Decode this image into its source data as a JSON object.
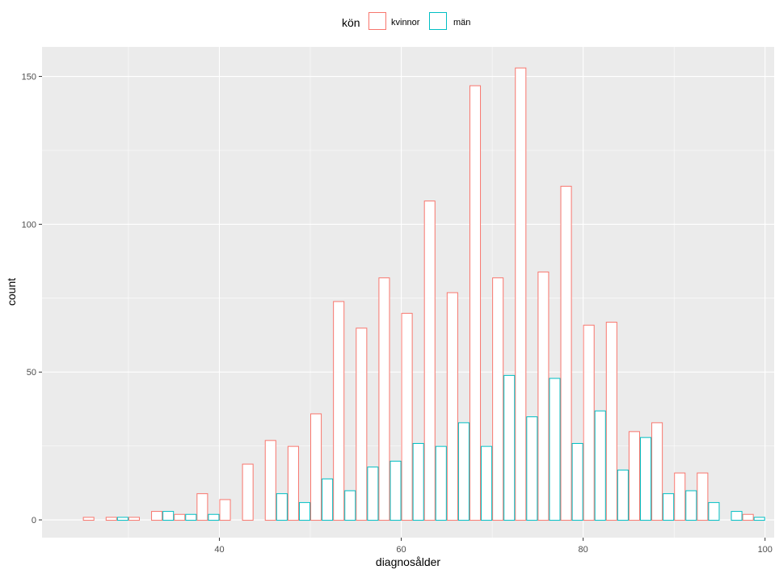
{
  "chart_data": {
    "type": "bar",
    "xlabel": "diagnosålder",
    "ylabel": "count",
    "xlim": [
      20.5,
      101
    ],
    "ylim": [
      -6,
      160
    ],
    "x_ticks": [
      40,
      60,
      80,
      100
    ],
    "y_ticks": [
      0,
      50,
      100,
      150
    ],
    "bin_width": 2.5,
    "grid": true,
    "legend_position": "top",
    "legend_title": "kön",
    "bin_starts": [
      25,
      27.5,
      30,
      32.5,
      35,
      37.5,
      40,
      42.5,
      45,
      47.5,
      50,
      52.5,
      55,
      57.5,
      60,
      62.5,
      65,
      67.5,
      70,
      72.5,
      75,
      77.5,
      80,
      82.5,
      85,
      87.5,
      90,
      92.5,
      95,
      97.5
    ],
    "series": [
      {
        "name": "kvinnor",
        "color": "#F8766D",
        "values": [
          1,
          1,
          1,
          3,
          2,
          9,
          7,
          19,
          27,
          25,
          36,
          74,
          65,
          82,
          70,
          108,
          77,
          147,
          82,
          153,
          84,
          113,
          66,
          67,
          30,
          33,
          16,
          16,
          0,
          2
        ]
      },
      {
        "name": "män",
        "color": "#00BFC4",
        "values": [
          0,
          1,
          0,
          3,
          2,
          2,
          0,
          0,
          9,
          6,
          14,
          10,
          18,
          20,
          26,
          25,
          33,
          25,
          49,
          35,
          48,
          26,
          37,
          17,
          28,
          9,
          10,
          6,
          3,
          1
        ]
      }
    ]
  }
}
